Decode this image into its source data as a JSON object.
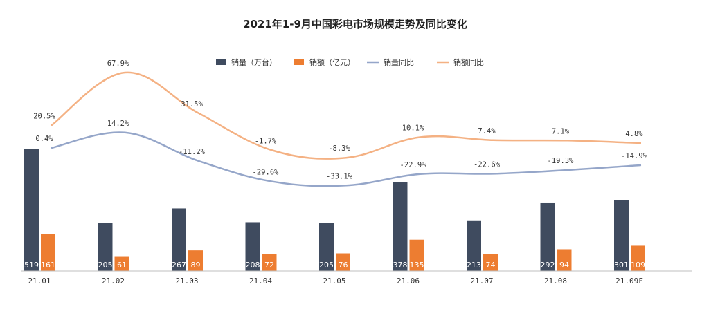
{
  "chart_data": {
    "type": "bar",
    "title": "2021年1-9月中国彩电市场规模走势及同比变化",
    "categories": [
      "21.01",
      "21.02",
      "21.03",
      "21.04",
      "21.05",
      "21.06",
      "21.07",
      "21.08",
      "21.09F"
    ],
    "series": [
      {
        "name": "销量（万台）",
        "kind": "bar",
        "color": "#3f4b5f",
        "values": [
          519,
          205,
          267,
          208,
          205,
          378,
          213,
          292,
          301
        ]
      },
      {
        "name": "销额（亿元）",
        "kind": "bar",
        "color": "#ed7d31",
        "values": [
          161,
          61,
          89,
          72,
          76,
          135,
          74,
          94,
          109
        ]
      },
      {
        "name": "销量同比",
        "kind": "line",
        "color": "#95a6c9",
        "values": [
          0.4,
          14.2,
          -11.2,
          -29.6,
          -33.1,
          -22.9,
          -22.6,
          -19.3,
          -14.9
        ],
        "labels": [
          "0.4%",
          "14.2%",
          "-11.2%",
          "-29.6%",
          "-33.1%",
          "-22.9%",
          "-22.6%",
          "-19.3%",
          "-14.9%"
        ]
      },
      {
        "name": "销额同比",
        "kind": "line",
        "color": "#f4b183",
        "values": [
          20.5,
          67.9,
          31.5,
          -1.7,
          -8.3,
          10.1,
          7.4,
          7.1,
          4.8
        ],
        "labels": [
          "20.5%",
          "67.9%",
          "31.5%",
          "-1.7%",
          "-8.3%",
          "10.1%",
          "7.4%",
          "7.1%",
          "4.8%"
        ]
      }
    ],
    "legend_position": "top-center",
    "grid": false
  }
}
